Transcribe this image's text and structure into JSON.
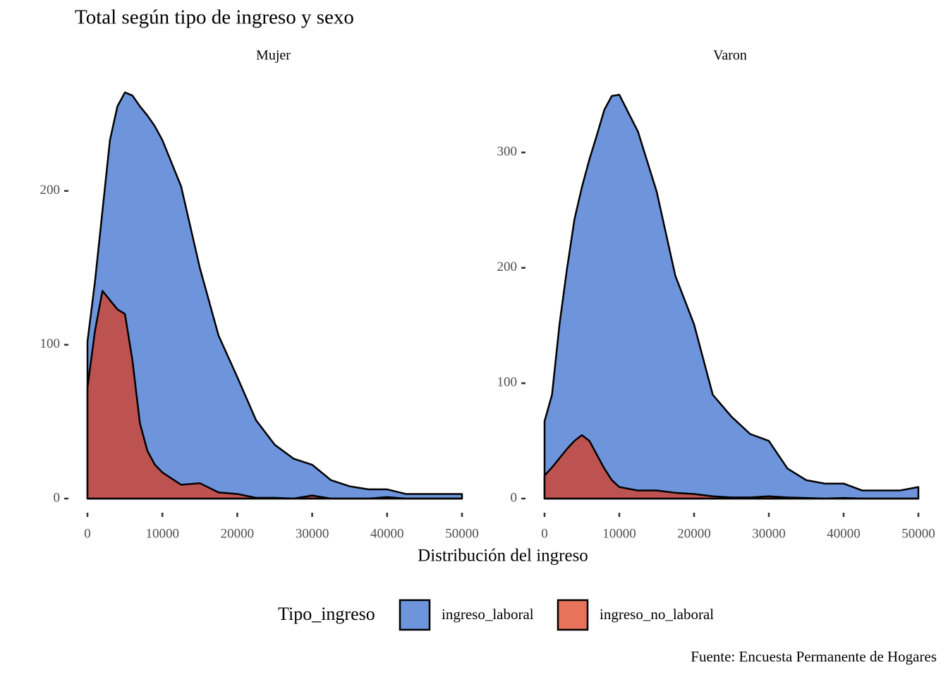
{
  "chart_data": {
    "type": "area",
    "title": "Total según tipo de ingreso y sexo",
    "xlabel": "Distribución del ingreso",
    "legend_title": "Tipo_ingreso",
    "caption": "Fuente: Encuesta Permanente de Hogares",
    "alpha": 0.7,
    "series": [
      {
        "name": "ingreso_laboral",
        "color": "#3166cc"
      },
      {
        "name": "ingreso_no_laboral",
        "color": "#de3716"
      }
    ],
    "x": [
      0,
      1000,
      2000,
      3000,
      4000,
      5000,
      6000,
      7000,
      8000,
      9000,
      10000,
      12500,
      15000,
      17500,
      20000,
      22500,
      25000,
      27500,
      30000,
      32500,
      35000,
      37500,
      40000,
      42500,
      45000,
      47500,
      50000
    ],
    "xlim": [
      0,
      50000
    ],
    "xticks": [
      0,
      10000,
      20000,
      30000,
      40000,
      50000
    ],
    "panels": [
      {
        "title": "Mujer",
        "ylim": [
          0,
          270
        ],
        "yticks": [
          0,
          100,
          200
        ],
        "series": [
          {
            "values": [
              102,
              141,
              187,
              233,
              255,
              264,
              262,
              255,
              249,
              242,
              233,
              203,
              150,
              106,
              79,
              51,
              35,
              26,
              22,
              12,
              8,
              6,
              6,
              3,
              3,
              3,
              3
            ]
          },
          {
            "values": [
              72,
              109,
              135,
              129,
              123,
              120,
              90,
              49,
              31,
              22,
              17,
              9,
              10,
              4,
              3,
              0.5,
              0.5,
              0,
              2,
              0,
              0,
              0,
              1,
              0,
              0,
              0,
              0
            ]
          }
        ]
      },
      {
        "title": "Varon",
        "ylim": [
          0,
          360
        ],
        "yticks": [
          0,
          100,
          200,
          300
        ],
        "series": [
          {
            "values": [
              67,
              90,
              151,
              199,
              242,
              270,
              294,
              315,
              337,
              349,
              350,
              318,
              266,
              193,
              151,
              90,
              71,
              56,
              50,
              26,
              16,
              13,
              13,
              7,
              7,
              7,
              10
            ]
          },
          {
            "values": [
              20,
              27,
              35,
              43,
              50,
              55,
              50,
              38,
              26,
              16,
              10,
              7,
              7,
              5,
              4,
              2,
              1,
              1,
              2,
              1,
              0.5,
              0,
              0.5,
              0,
              0,
              0,
              0
            ]
          }
        ]
      }
    ]
  }
}
